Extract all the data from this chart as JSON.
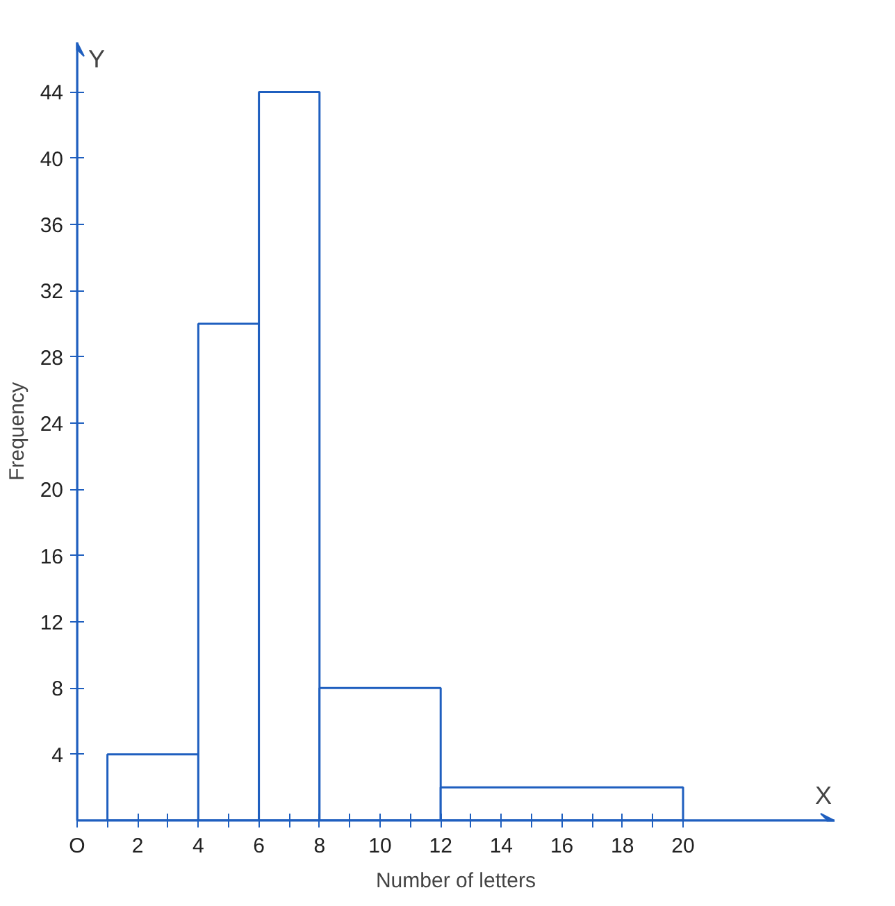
{
  "chart_data": {
    "type": "histogram",
    "xlabel": "Number of letters",
    "ylabel": "Frequency",
    "bins": [
      1,
      4,
      6,
      8,
      12,
      20
    ],
    "values": [
      4,
      30,
      44,
      8,
      2
    ],
    "color": "#1f5fbf",
    "xlim": [
      0,
      25
    ],
    "ylim": [
      0,
      47
    ],
    "xticks": [
      {
        "value": 0,
        "label": "O"
      },
      {
        "value": 1,
        "label": null
      },
      2,
      {
        "value": 3,
        "label": null
      },
      4,
      {
        "value": 5,
        "label": null
      },
      6,
      {
        "value": 7,
        "label": null
      },
      8,
      {
        "value": 9,
        "label": null
      },
      10,
      {
        "value": 11,
        "label": null
      },
      12,
      {
        "value": 13,
        "label": null
      },
      14,
      {
        "value": 15,
        "label": null
      },
      16,
      {
        "value": 17,
        "label": null
      },
      18,
      {
        "value": 19,
        "label": null
      },
      20
    ],
    "yticks": [
      4,
      8,
      12,
      16,
      20,
      24,
      28,
      32,
      36,
      40,
      44
    ],
    "annotations": [
      "X",
      "Y"
    ],
    "grid": false
  }
}
